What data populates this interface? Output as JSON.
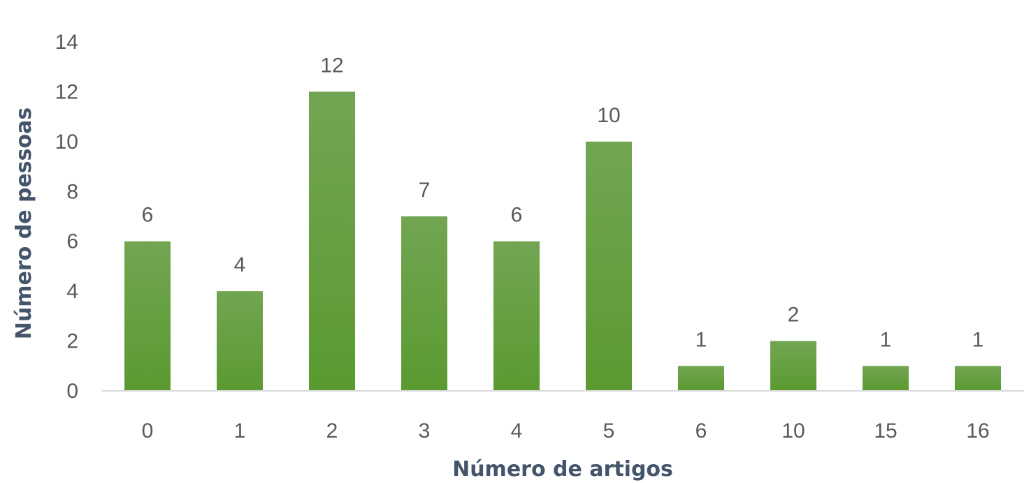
{
  "chart_data": {
    "type": "bar",
    "title": "",
    "xlabel": "Número de artigos",
    "ylabel": "Número de pessoas",
    "categories": [
      "0",
      "1",
      "2",
      "3",
      "4",
      "5",
      "6",
      "10",
      "15",
      "16"
    ],
    "values": [
      6,
      4,
      12,
      7,
      6,
      10,
      1,
      2,
      1,
      1
    ],
    "ylim": [
      0,
      14
    ],
    "yticks": [
      "0",
      "2",
      "4",
      "6",
      "8",
      "10",
      "12",
      "14"
    ],
    "grid": false,
    "legend": "none",
    "data_labels": [
      "6",
      "4",
      "12",
      "7",
      "6",
      "10",
      "1",
      "2",
      "1",
      "1"
    ],
    "colors": {
      "bar_top": "#72A552",
      "bar_bottom": "#5A9A30",
      "axis_line": "#D9D9D9",
      "tick_text": "#595959",
      "axis_title": "#44546A"
    }
  }
}
